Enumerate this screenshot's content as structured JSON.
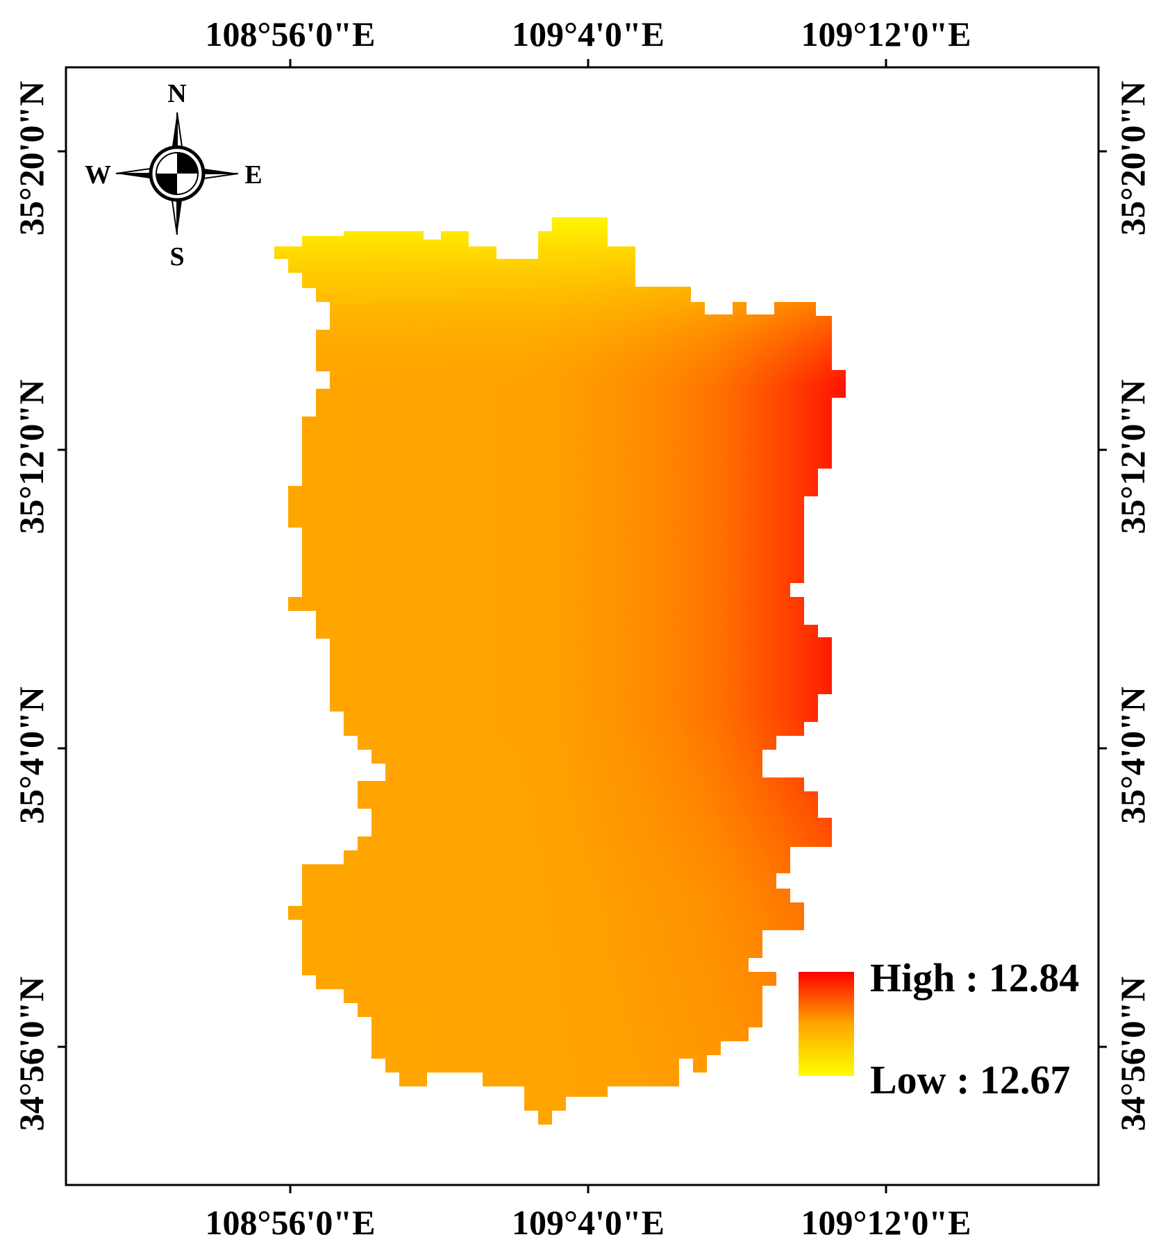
{
  "map": {
    "longitude_labels": [
      "108°56'0\"E",
      "109°4'0\"E",
      "109°12'0\"E"
    ],
    "latitude_labels": [
      "35°20'0\"N",
      "35°12'0\"N",
      "35°4'0\"N",
      "34°56'0\"N"
    ]
  },
  "compass": {
    "north": "N",
    "south": "S",
    "east": "E",
    "west": "W",
    "icon": "north-arrow-compass-icon"
  },
  "legend": {
    "high_label": "High : 12.84",
    "low_label": "Low : 12.67",
    "high_value": 12.84,
    "low_value": 12.67,
    "color_high": "#ff0000",
    "color_mid": "#ffa500",
    "color_low": "#ffff00"
  },
  "colors": {
    "frame": "#000000",
    "raster_high": "#ff0000",
    "raster_mid": "#ffa500",
    "raster_low": "#ffff00"
  }
}
